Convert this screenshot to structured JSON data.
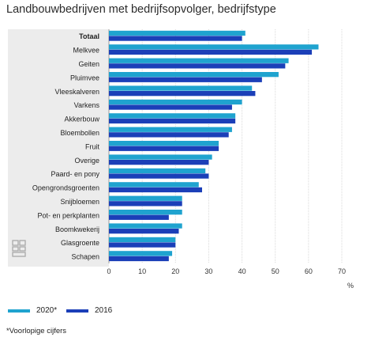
{
  "chart_data": {
    "type": "bar",
    "orientation": "horizontal",
    "title": "Landbouwbedrijven met bedrijfsopvolger, bedrijfstype",
    "categories": [
      "Totaal",
      "Melkvee",
      "Geiten",
      "Pluimvee",
      "Vleeskalveren",
      "Varkens",
      "Akkerbouw",
      "Bloembollen",
      "Fruit",
      "Overige",
      "Paard- en pony",
      "Opengrondsgroenten",
      "Snijbloemen",
      "Pot- en perkplanten",
      "Boomkwekerij",
      "Glasgroente",
      "Schapen"
    ],
    "series": [
      {
        "name": "2020*",
        "color": "#1fa3cf",
        "values": [
          41,
          63,
          54,
          51,
          43,
          40,
          38,
          37,
          33,
          31,
          29,
          27,
          22,
          22,
          22,
          20,
          19
        ]
      },
      {
        "name": "2016",
        "color": "#1b3fb8",
        "values": [
          40,
          61,
          53,
          46,
          44,
          37,
          38,
          36,
          33,
          30,
          30,
          28,
          22,
          18,
          21,
          20,
          18
        ]
      }
    ],
    "xticks": [
      "0",
      "10",
      "20",
      "30",
      "40",
      "50",
      "60",
      "70"
    ],
    "xlim": [
      0,
      70
    ],
    "unit": "%",
    "legend_position": "bottom",
    "grid": "vertical",
    "footnote": "*Voorlopige cijfers"
  }
}
